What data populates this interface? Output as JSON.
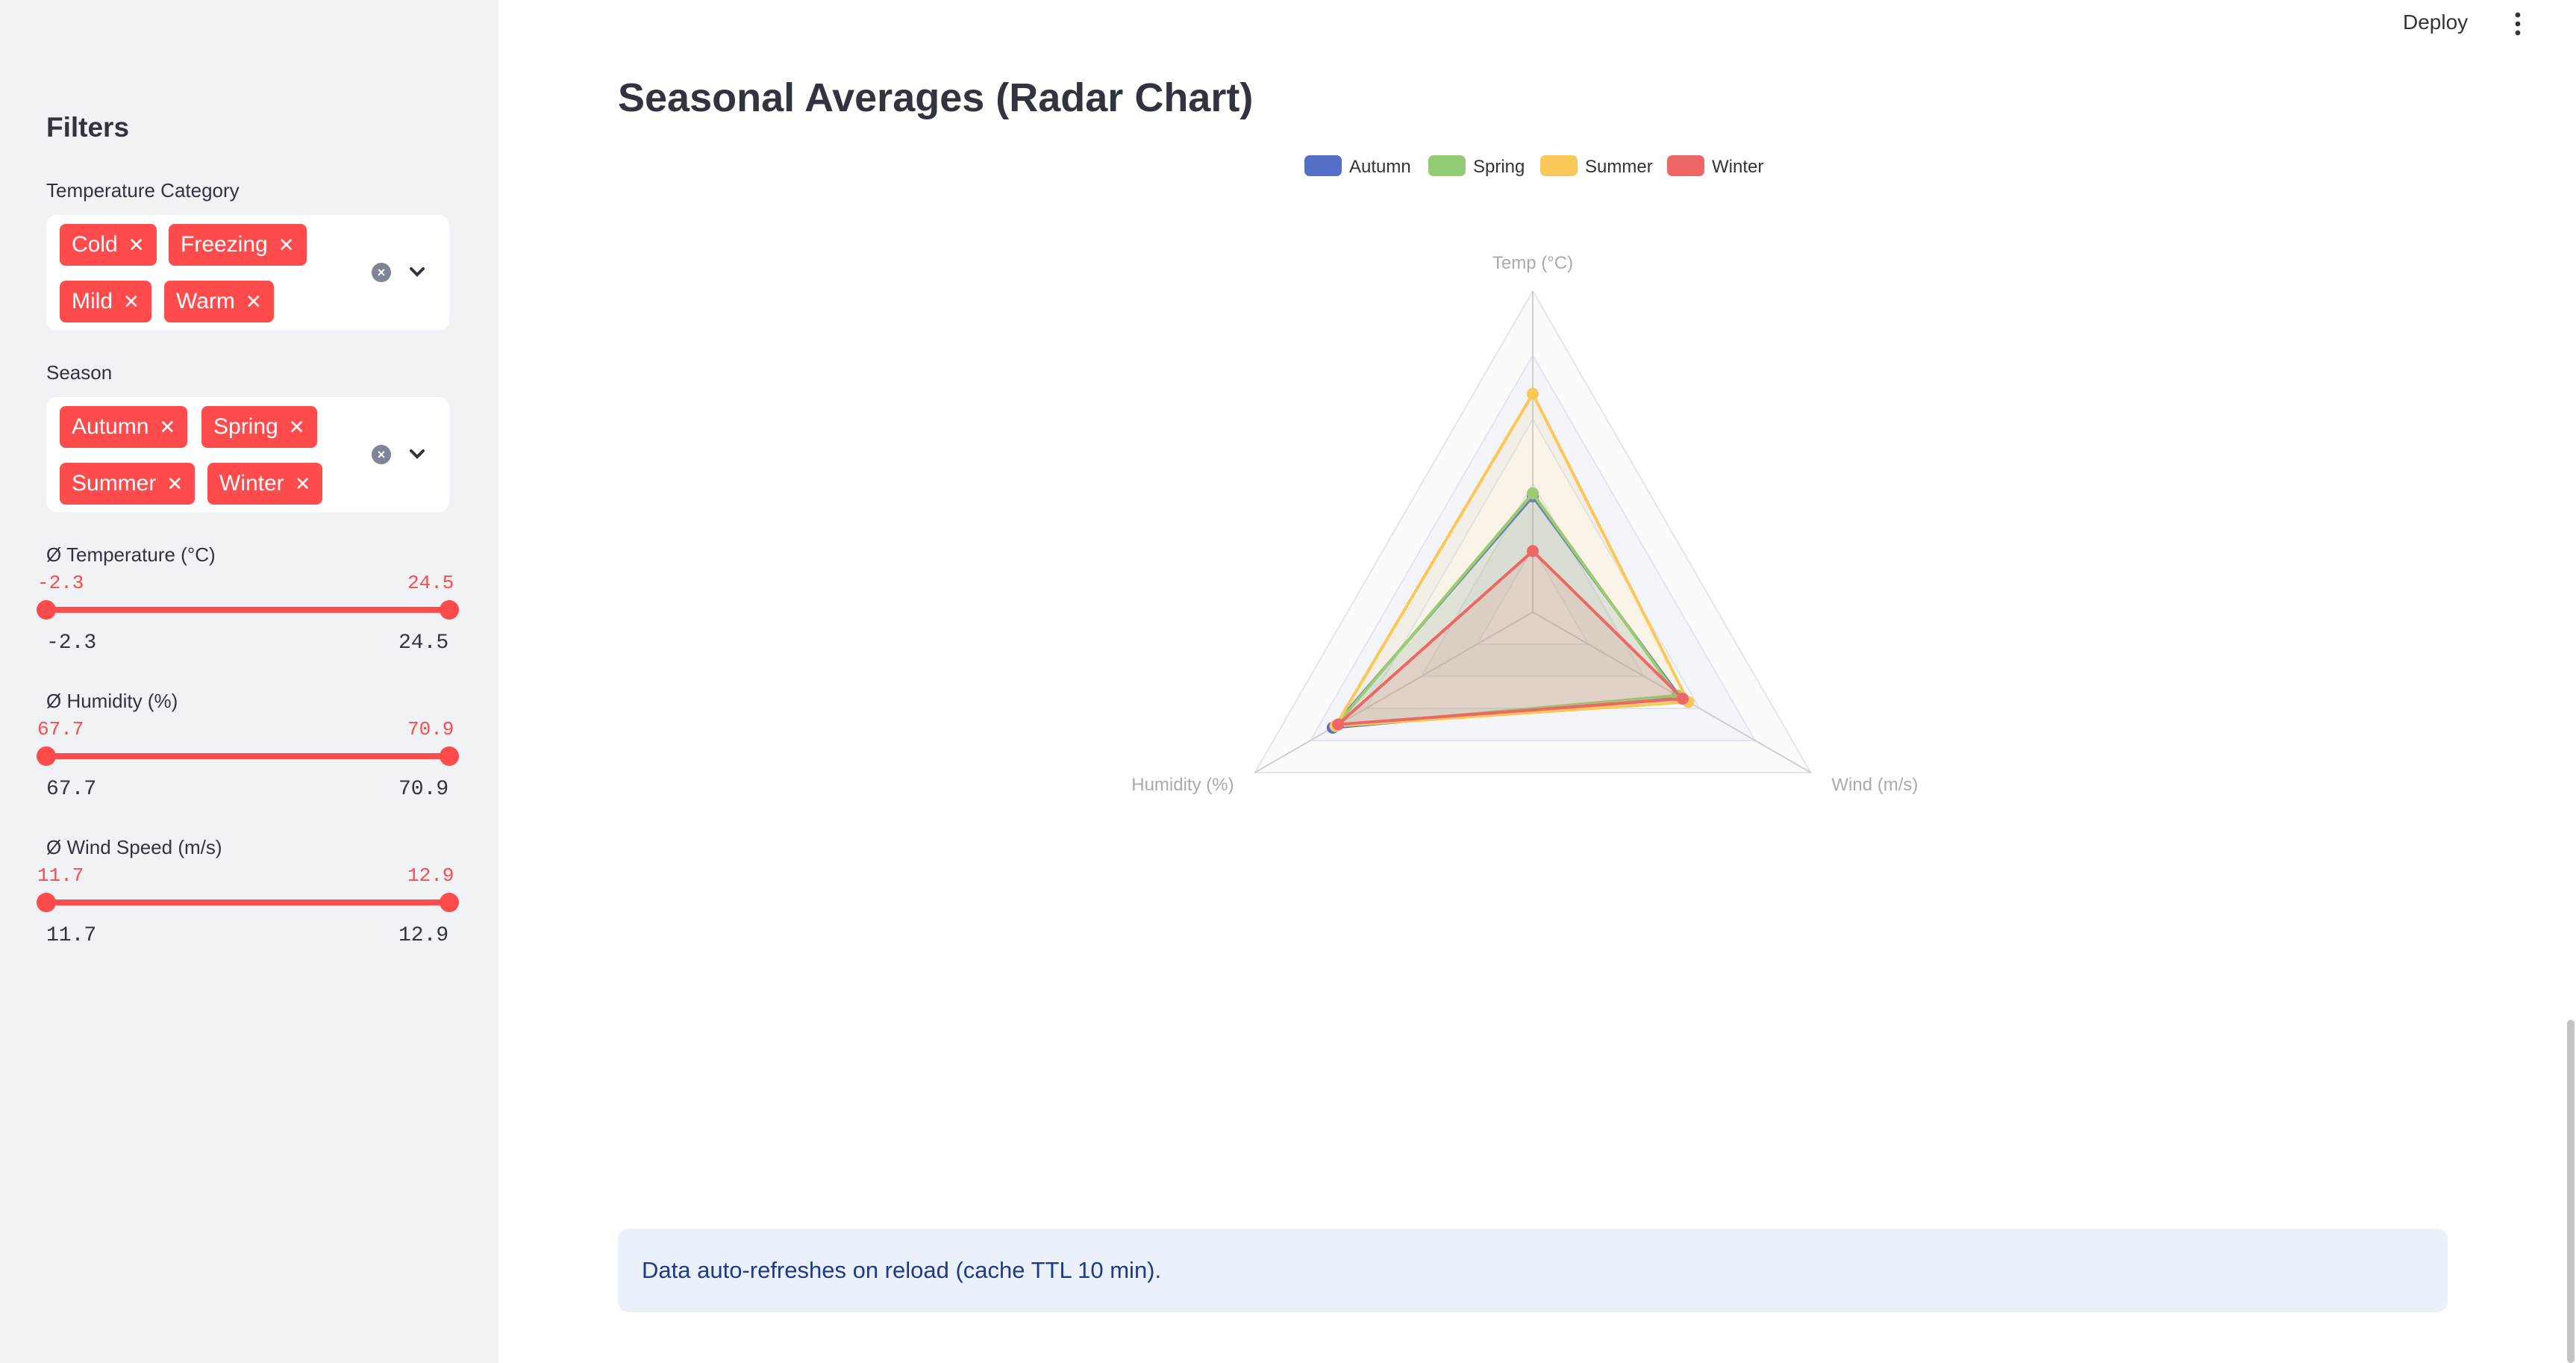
{
  "sidebar": {
    "title": "Filters",
    "temp_category": {
      "label": "Temperature Category",
      "tags": [
        "Cold",
        "Freezing",
        "Mild",
        "Warm"
      ]
    },
    "season": {
      "label": "Season",
      "tags": [
        "Autumn",
        "Spring",
        "Summer",
        "Winter"
      ]
    },
    "sliders": [
      {
        "label": "Ø Temperature (°C)",
        "low": "-2.3",
        "high": "24.5",
        "min": "-2.3",
        "max": "24.5"
      },
      {
        "label": "Ø Humidity (%)",
        "low": "67.7",
        "high": "70.9",
        "min": "67.7",
        "max": "70.9"
      },
      {
        "label": "Ø Wind Speed (m/s)",
        "low": "11.7",
        "high": "12.9",
        "min": "11.7",
        "max": "12.9"
      }
    ]
  },
  "header": {
    "deploy_label": "Deploy"
  },
  "main": {
    "title": "Seasonal Averages (Radar Chart)",
    "info": "Data auto-refreshes on reload (cache TTL 10 min)."
  },
  "colors": {
    "accent": "#ff4b4b"
  },
  "chart_data": {
    "type": "radar",
    "axes": [
      "Temp (°C)",
      "Wind (m/s)",
      "Humidity (%)"
    ],
    "scale": "each axis normalized 0–1 (no tick labels shown)",
    "legend": "top-center",
    "series": [
      {
        "name": "Autumn",
        "color": "#5470c6",
        "values": [
          0.36,
          0.53,
          0.72
        ]
      },
      {
        "name": "Spring",
        "color": "#91cc75",
        "values": [
          0.37,
          0.52,
          0.71
        ]
      },
      {
        "name": "Summer",
        "color": "#fac858",
        "values": [
          0.68,
          0.56,
          0.71
        ]
      },
      {
        "name": "Winter",
        "color": "#ee6666",
        "values": [
          0.19,
          0.54,
          0.7
        ]
      }
    ]
  }
}
